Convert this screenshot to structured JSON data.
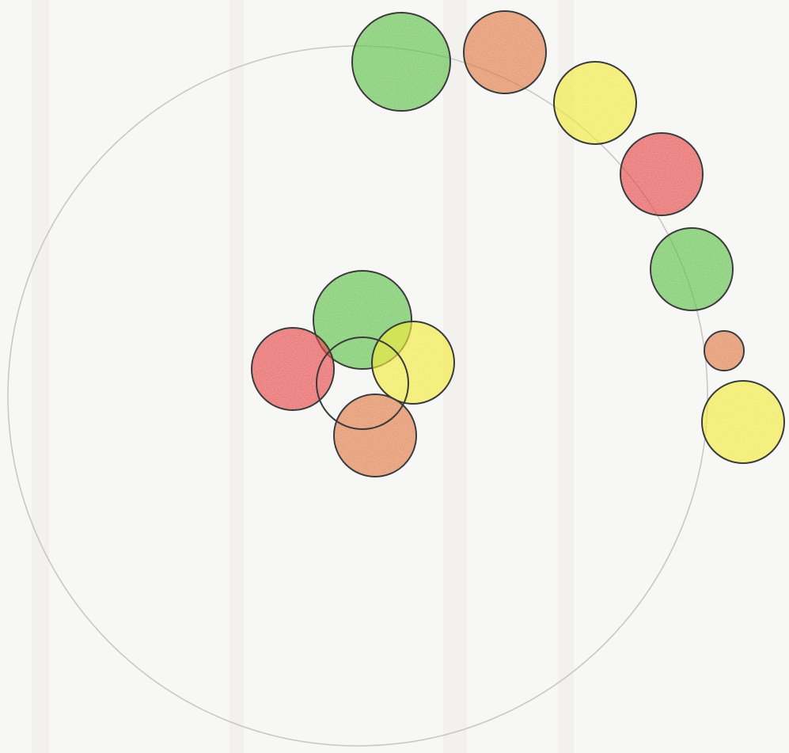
{
  "diagram": {
    "outer_circle": {
      "stroke": "#c8c8c8"
    },
    "colors": {
      "green": "#5ec24a",
      "orange": "#e07a45",
      "yellow": "#f2ea3c",
      "red": "#e64848",
      "outline": "#3a3a3a"
    },
    "central_cluster": [
      {
        "id": "c1",
        "color": "green",
        "lines": [
          "",
          ""
        ]
      },
      {
        "id": "c2",
        "color": "red",
        "lines": [
          ""
        ]
      },
      {
        "id": "c3",
        "color": "yellow",
        "lines": [
          "",
          ""
        ]
      },
      {
        "id": "c4",
        "color": "orange",
        "lines": [
          "",
          ""
        ]
      },
      {
        "id": "c5",
        "color": "none",
        "lines": [
          "",
          ""
        ]
      }
    ],
    "outer_ring": [
      {
        "id": "r1",
        "color": "green",
        "lines": [
          "",
          ""
        ]
      },
      {
        "id": "r2",
        "color": "orange",
        "lines": [
          "",
          ""
        ]
      },
      {
        "id": "r3",
        "color": "yellow",
        "lines": [
          ""
        ]
      },
      {
        "id": "r4",
        "color": "red",
        "lines": [
          ""
        ]
      },
      {
        "id": "r5",
        "color": "green",
        "lines": [
          "",
          ""
        ]
      },
      {
        "id": "r6",
        "color": "orange",
        "lines": [
          ""
        ]
      },
      {
        "id": "r7",
        "color": "yellow",
        "lines": [
          "",
          ""
        ]
      }
    ]
  }
}
